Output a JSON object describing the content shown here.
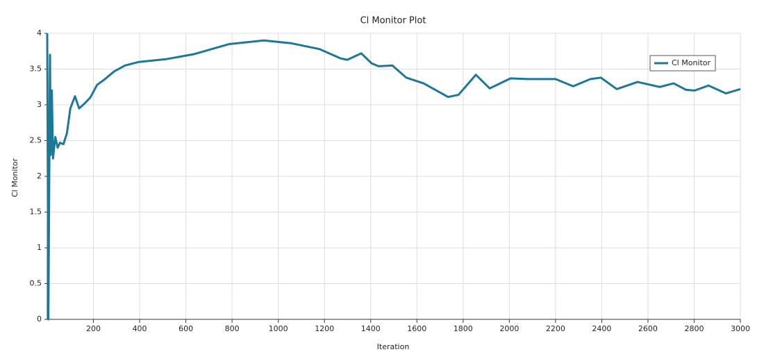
{
  "chart_data": {
    "type": "line",
    "title": "Cl Monitor Plot",
    "x_label": "Iteration",
    "y_label": "Cl Monitor",
    "x": [
      0,
      5,
      12,
      15,
      20,
      25,
      35,
      45,
      55,
      70,
      85,
      100,
      120,
      138,
      162,
      186,
      216,
      246,
      291,
      337,
      397,
      517,
      637,
      788,
      938,
      1058,
      1178,
      1269,
      1299,
      1359,
      1404,
      1434,
      1494,
      1554,
      1629,
      1735,
      1780,
      1855,
      1915,
      2005,
      2080,
      2200,
      2276,
      2351,
      2396,
      2465,
      2555,
      2651,
      2711,
      2765,
      2802,
      2862,
      2937,
      3000
    ],
    "series": [
      {
        "name": "Cl Monitor",
        "color": "#1c7896",
        "values": [
          4.0,
          0,
          3.7,
          2.3,
          3.2,
          2.25,
          2.55,
          2.4,
          2.47,
          2.45,
          2.6,
          2.95,
          3.12,
          2.95,
          3.02,
          3.1,
          3.28,
          3.35,
          3.47,
          3.55,
          3.6,
          3.64,
          3.71,
          3.85,
          3.9,
          3.86,
          3.78,
          3.65,
          3.63,
          3.72,
          3.58,
          3.54,
          3.55,
          3.38,
          3.3,
          3.11,
          3.14,
          3.42,
          3.23,
          3.37,
          3.36,
          3.36,
          3.26,
          3.36,
          3.38,
          3.22,
          3.32,
          3.25,
          3.3,
          3.21,
          3.2,
          3.27,
          3.16,
          3.22
        ]
      }
    ],
    "xlim": [
      0,
      3000
    ],
    "xticks": [
      200,
      400,
      600,
      800,
      1000,
      1200,
      1400,
      1600,
      1800,
      2000,
      2200,
      2400,
      2600,
      2800,
      3000
    ],
    "ylim": [
      0,
      4
    ],
    "yticks": [
      0,
      0.5,
      1,
      1.5,
      2,
      2.5,
      3,
      3.5,
      4
    ],
    "grid": true,
    "legend_position": "top-right"
  }
}
